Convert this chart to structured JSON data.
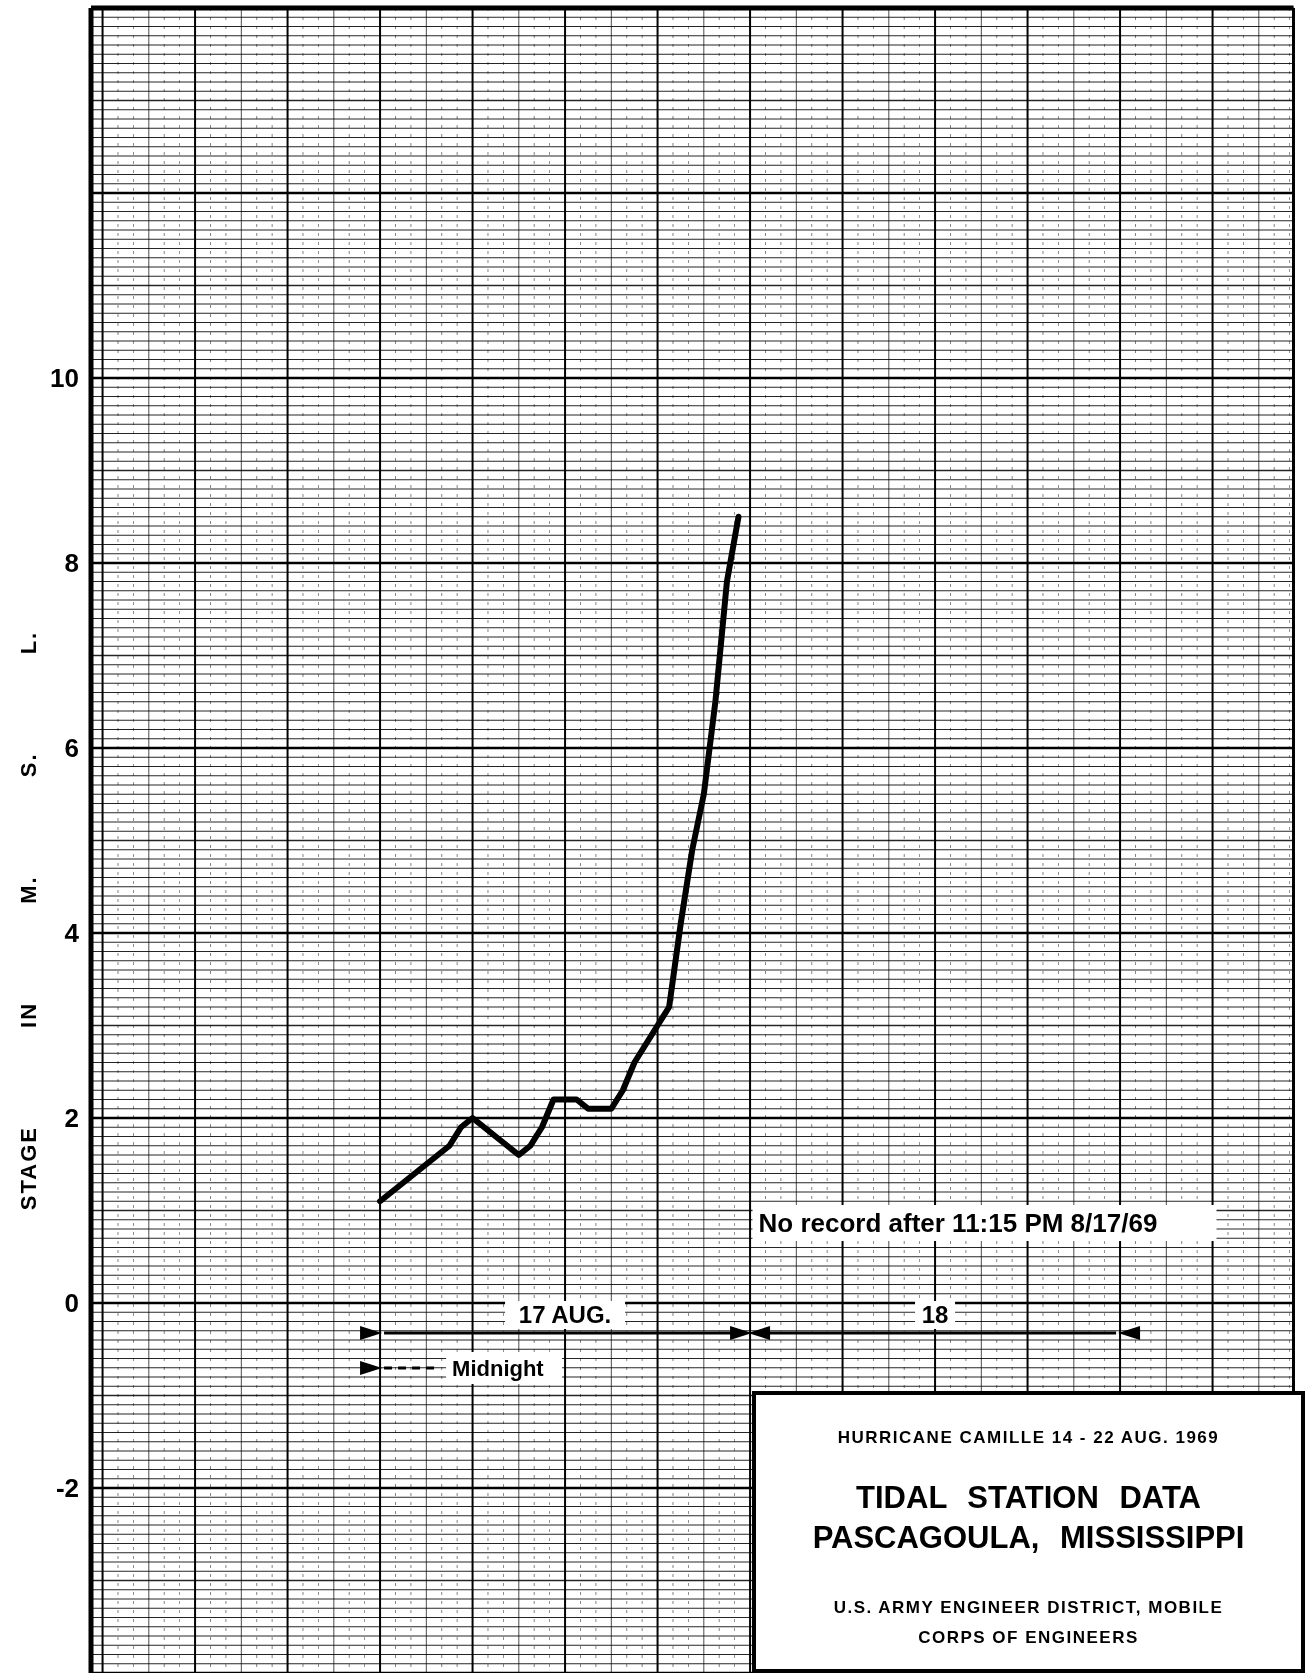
{
  "chart_data": {
    "type": "line",
    "title": "TIDAL STATION DATA\nPASCAGOULA, MISSISSIPPI",
    "subtitle": "HURRICANE CAMILLE 14 - 22 AUG. 1969",
    "ylabel": "STAGE IN M. S. L.",
    "categories": [
      null,
      null,
      null,
      null,
      null,
      null,
      null,
      null,
      null,
      null,
      null,
      null,
      null,
      null,
      null,
      null,
      null,
      null,
      null,
      null,
      null,
      null,
      null,
      null,
      null,
      null,
      null,
      null,
      null,
      null,
      null,
      null,
      null,
      null,
      null,
      null,
      null,
      null,
      null,
      null,
      null,
      null,
      null,
      null,
      null,
      null,
      null,
      null,
      null,
      null,
      null,
      null,
      null,
      null,
      null,
      null,
      null,
      null,
      null,
      null,
      null,
      null,
      null,
      null,
      null,
      null,
      null,
      null,
      null,
      null,
      null,
      null,
      null,
      null,
      null,
      null,
      null,
      null,
      null,
      null,
      null,
      null,
      null,
      null,
      null,
      null,
      null,
      null,
      null,
      null,
      null,
      null,
      null,
      null,
      null,
      null,
      null,
      null,
      null,
      null,
      null,
      null,
      null,
      null,
      null
    ],
    "series": [
      {
        "color": "#000000",
        "values": [
          null,
          null,
          null,
          null,
          null,
          null,
          null,
          null,
          null,
          null,
          null,
          null,
          null,
          null,
          null,
          null,
          null,
          null,
          null,
          null,
          null,
          null,
          null,
          null,
          null,
          1.1,
          1.2,
          1.3,
          1.4,
          1.5,
          1.6,
          1.7,
          1.9,
          2.0,
          1.9,
          1.8,
          1.7,
          1.6,
          1.7,
          1.9,
          2.2,
          2.2,
          2.2,
          2.1,
          2.1,
          2.1,
          2.3,
          2.6,
          2.8,
          3.0,
          3.2,
          4.1,
          4.9,
          5.5,
          6.5,
          7.8,
          8.5,
          null,
          null,
          null,
          null,
          null,
          null,
          null,
          null,
          null,
          null,
          null,
          null,
          null,
          null,
          null,
          null,
          null,
          null,
          null,
          null,
          null,
          null,
          null,
          null,
          null,
          null,
          null,
          null,
          null,
          null,
          null,
          null,
          null,
          null,
          null,
          null,
          null,
          null,
          null,
          null,
          null,
          null,
          null,
          null,
          null,
          null,
          null,
          null
        ]
      }
    ],
    "ylim": [
      -4,
      14
    ],
    "yticks": [
      -2,
      0,
      2,
      4,
      6,
      8,
      10
    ],
    "tick_labels": "y",
    "grid": true,
    "line_style": "solid",
    "marker": "none",
    "annotations": [
      "No record after 11:15 PM 8/17/69",
      "Midnight",
      "17 AUG.",
      "18",
      "U.S. ARMY ENGINEER DISTRICT, MOBILE",
      "CORPS OF ENGINEERS"
    ]
  }
}
